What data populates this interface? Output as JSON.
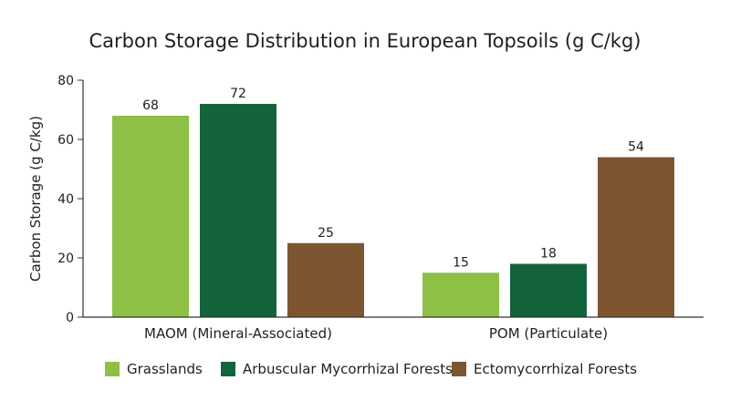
{
  "chart_data": {
    "type": "bar",
    "title": "Carbon Storage Distribution in European Topsoils (g C/kg)",
    "xlabel": "",
    "ylabel": "Carbon Storage (g C/kg)",
    "ylim": [
      0,
      80
    ],
    "yticks": [
      0,
      20,
      40,
      60,
      80
    ],
    "categories": [
      "MAOM (Mineral-Associated)",
      "POM (Particulate)"
    ],
    "series": [
      {
        "name": "Grasslands",
        "color": "#8dc045",
        "values": [
          68,
          15
        ]
      },
      {
        "name": "Arbuscular Mycorrhizal Forests",
        "color": "#13633b",
        "values": [
          72,
          18
        ]
      },
      {
        "name": "Ectomycorrhizal Forests",
        "color": "#7d5530",
        "values": [
          25,
          54
        ]
      }
    ],
    "legend_position": "bottom",
    "grid": false
  }
}
